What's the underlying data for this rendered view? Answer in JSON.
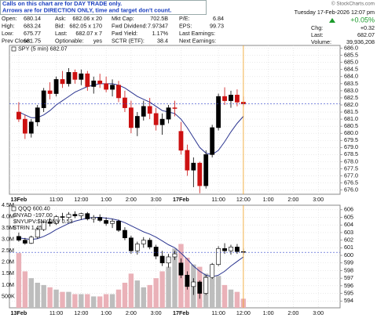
{
  "header": {
    "notes": [
      "Calls on this chart are for DAY TRADE only.",
      "Arrows are for DIRECTION ONLY, time and target don't count."
    ],
    "quote": [
      [
        [
          "Open:",
          "680.14"
        ],
        [
          "Ask:",
          "682.06 x 20"
        ],
        [
          "Mkt Cap:",
          "702.5B"
        ],
        [
          "P/E:",
          "6.84"
        ]
      ],
      [
        [
          "High:",
          "683.24"
        ],
        [
          "Bid:",
          "682.05 x 170"
        ],
        [
          "Fwd Dividend:",
          "7.97347"
        ],
        [
          "EPS:",
          "99.73"
        ]
      ],
      [
        [
          "Low:",
          "675.77"
        ],
        [
          "Last:",
          "682.07 x 7"
        ],
        [
          "Fwd Yield:",
          "1.17%"
        ],
        [
          "Last Earnings:"
        ]
      ],
      [
        [
          "Prev Close:",
          "681.75"
        ],
        [
          "Optionable:",
          "yes"
        ],
        [
          "SCTR (ETF):",
          "38.4"
        ],
        [
          "Next Earnings:"
        ]
      ]
    ],
    "copyright": "© StockCharts.com",
    "date": "Tuesday 17-Feb-2026 12:07 pm",
    "change_pct": "+0.05%",
    "summary": [
      [
        "Chg:",
        "+0.32"
      ],
      [
        "Last:",
        "682.07"
      ],
      [
        "Volume:",
        "39,936,208"
      ]
    ]
  },
  "chart_data": [
    {
      "type": "candlestick",
      "xlim": [
        -1.5,
        51.5
      ],
      "xticks": [
        {
          "value": 0,
          "label": "13Feb"
        },
        {
          "value": 6,
          "label": "11:00"
        },
        {
          "value": 10,
          "label": "12:00"
        },
        {
          "value": 14,
          "label": "1:00"
        },
        {
          "value": 18,
          "label": "2:00"
        },
        {
          "value": 22,
          "label": "3:00"
        },
        {
          "value": 26,
          "label": "17Feb"
        },
        {
          "value": 32,
          "label": "11:00"
        },
        {
          "value": 36,
          "label": "12:00"
        },
        {
          "value": 40,
          "label": "1:00"
        },
        {
          "value": 44,
          "label": "2:00"
        },
        {
          "value": 48,
          "label": "3:00"
        }
      ],
      "ylim": [
        675.7,
        686.2
      ],
      "yticks": [
        {
          "value": 676,
          "label": "676.0"
        },
        {
          "value": 676.5,
          "label": "676.5"
        },
        {
          "value": 677,
          "label": "677.0"
        },
        {
          "value": 677.5,
          "label": "677.5"
        },
        {
          "value": 678,
          "label": "678.0"
        },
        {
          "value": 678.5,
          "label": "678.5"
        },
        {
          "value": 679,
          "label": "679.0"
        },
        {
          "value": 679.5,
          "label": "679.5"
        },
        {
          "value": 680,
          "label": "680.0"
        },
        {
          "value": 680.5,
          "label": "680.5"
        },
        {
          "value": 681,
          "label": "681.0"
        },
        {
          "value": 681.5,
          "label": "681.5"
        },
        {
          "value": 682,
          "label": "682.0"
        },
        {
          "value": 682.5,
          "label": "682.5"
        },
        {
          "value": 683,
          "label": "683.0"
        },
        {
          "value": 683.5,
          "label": "683.5"
        },
        {
          "value": 684,
          "label": "684.0"
        },
        {
          "value": 684.5,
          "label": "684.5"
        },
        {
          "value": 685,
          "label": "685.0"
        },
        {
          "value": 685.5,
          "label": "685.5"
        },
        {
          "value": 686,
          "label": "686.0"
        }
      ],
      "grid": true,
      "series": [
        {
          "name": "SPY (5 min) 682.07",
          "up_color": "#000000",
          "down_color": "#cc1111",
          "open": [
            681.5,
            681.0,
            680.0,
            680.8,
            681.8,
            683.0,
            682.8,
            683.8,
            683.5,
            684.3,
            683.8,
            684.2,
            683.3,
            683.7,
            683.5,
            683.1,
            683.4,
            682.5,
            681.8,
            680.4,
            681.2,
            681.9,
            681.4,
            680.6,
            681.0,
            681.8,
            680.14,
            678.8,
            677.4,
            677.9,
            676.3,
            678.5,
            680.4,
            682.6,
            682.3,
            682.7,
            682.2
          ],
          "high": [
            682.2,
            681.3,
            681.0,
            682.0,
            683.2,
            683.6,
            684.0,
            684.4,
            684.6,
            684.5,
            684.5,
            684.4,
            684.0,
            684.2,
            684.0,
            683.8,
            683.7,
            683.0,
            682.3,
            681.5,
            682.3,
            682.5,
            681.8,
            681.4,
            682.0,
            682.3,
            680.8,
            679.2,
            678.3,
            678.0,
            678.8,
            680.6,
            682.8,
            683.24,
            683.0,
            683.1,
            682.6
          ],
          "low": [
            680.8,
            679.6,
            679.7,
            680.5,
            681.5,
            682.4,
            682.6,
            683.2,
            683.3,
            683.5,
            683.4,
            683.0,
            682.8,
            683.2,
            682.9,
            682.6,
            682.2,
            681.5,
            680.0,
            679.8,
            680.9,
            681.0,
            680.2,
            679.9,
            680.7,
            681.2,
            678.5,
            677.0,
            676.2,
            675.77,
            676.1,
            678.3,
            680.2,
            682.0,
            681.8,
            681.9,
            681.9
          ],
          "close": [
            681.0,
            680.0,
            680.8,
            681.8,
            683.0,
            682.8,
            683.8,
            683.5,
            684.3,
            683.8,
            684.2,
            683.3,
            683.7,
            683.5,
            683.1,
            683.4,
            682.5,
            681.8,
            680.4,
            681.2,
            681.9,
            681.4,
            680.6,
            681.0,
            681.8,
            681.75,
            678.8,
            677.4,
            677.9,
            676.3,
            678.5,
            680.4,
            682.6,
            682.3,
            682.7,
            682.2,
            682.07
          ]
        },
        {
          "color": "#2b3590",
          "values": [
            681.5,
            681.3,
            681.1,
            681.1,
            681.3,
            681.6,
            682.0,
            682.3,
            682.6,
            682.9,
            683.1,
            683.3,
            683.4,
            683.5,
            683.5,
            683.5,
            683.4,
            683.2,
            682.9,
            682.6,
            682.4,
            682.2,
            681.9,
            681.6,
            681.5,
            681.4,
            681.0,
            680.4,
            679.7,
            679.0,
            678.6,
            678.5,
            678.8,
            679.4,
            680.1,
            680.7,
            681.2
          ]
        }
      ]
    },
    {
      "type": "candlestick",
      "xlim": [
        -1.5,
        51.5
      ],
      "xticks": [
        {
          "value": 0,
          "label": "13Feb"
        },
        {
          "value": 6,
          "label": "11:00"
        },
        {
          "value": 10,
          "label": "12:00"
        },
        {
          "value": 14,
          "label": "1:00"
        },
        {
          "value": 18,
          "label": "2:00"
        },
        {
          "value": 22,
          "label": "3:00"
        },
        {
          "value": 26,
          "label": "17Feb"
        },
        {
          "value": 32,
          "label": "11:00"
        },
        {
          "value": 36,
          "label": "12:00"
        },
        {
          "value": 40,
          "label": "1:00"
        },
        {
          "value": 44,
          "label": "2:00"
        },
        {
          "value": 48,
          "label": "3:00"
        }
      ],
      "ylim": [
        593.1,
        606.6
      ],
      "yticks": [
        594,
        595,
        596,
        597,
        598,
        599,
        600,
        601,
        602,
        603,
        604,
        605,
        606
      ],
      "y2lim": [
        0,
        4500000
      ],
      "y2ticks": [
        {
          "value": 500000,
          "label": "500K"
        },
        {
          "value": 1000000,
          "label": "1.0M"
        },
        {
          "value": 1500000,
          "label": "1.5M"
        },
        {
          "value": 2000000,
          "label": "2.0M"
        },
        {
          "value": 2500000,
          "label": "2.5M"
        },
        {
          "value": 3000000,
          "label": "3.0M"
        },
        {
          "value": 3500000,
          "label": "3.5M"
        },
        {
          "value": 4000000,
          "label": "4.0M"
        },
        {
          "value": 4500000,
          "label": "4.5M"
        }
      ],
      "grid": true,
      "overlays": [
        "$NYAD -197.00",
        "$NYUPV:$NYDNV 0.53",
        "$TRIN 1.45"
      ],
      "series": [
        {
          "name": "QQQ 600.40",
          "up_color": "#ffffff",
          "down_color": "#000000",
          "open": [
            602.5,
            602.0,
            601.6,
            602.4,
            603.4,
            604.4,
            604.2,
            605.1,
            605.0,
            605.4,
            605.2,
            605.5,
            604.8,
            605.0,
            604.6,
            604.2,
            604.5,
            603.3,
            602.3,
            600.6,
            601.5,
            602.0,
            601.1,
            599.9,
            599.0,
            599.8,
            599.0,
            597.4,
            595.9,
            596.5,
            595.0,
            597.1,
            598.8,
            600.9,
            600.6,
            601.1,
            600.5
          ],
          "high": [
            603.0,
            602.3,
            602.6,
            603.6,
            604.6,
            604.9,
            605.3,
            605.6,
            605.7,
            605.8,
            605.6,
            605.7,
            605.3,
            605.4,
            605.0,
            604.8,
            604.7,
            603.7,
            602.6,
            601.8,
            602.4,
            602.3,
            601.4,
            600.6,
            600.2,
            600.6,
            599.6,
            597.9,
            597.0,
            596.7,
            597.4,
            599.0,
            601.2,
            601.6,
            601.4,
            601.5,
            600.9
          ],
          "low": [
            601.8,
            601.4,
            601.5,
            602.2,
            603.2,
            603.8,
            604.0,
            604.6,
            604.8,
            604.9,
            604.7,
            604.6,
            604.3,
            604.4,
            603.9,
            603.6,
            603.1,
            602.0,
            600.2,
            600.1,
            601.0,
            600.8,
            599.5,
            598.6,
            598.4,
            599.4,
            597.0,
            595.5,
            594.8,
            594.3,
            594.8,
            596.9,
            598.6,
            600.2,
            600.1,
            600.2,
            600.1
          ],
          "close": [
            602.0,
            601.6,
            602.4,
            603.4,
            604.4,
            604.2,
            605.1,
            605.0,
            605.4,
            605.2,
            605.5,
            604.8,
            605.0,
            604.6,
            604.2,
            604.5,
            603.3,
            602.3,
            600.6,
            601.5,
            602.0,
            601.1,
            599.9,
            599.0,
            599.8,
            600.2,
            597.4,
            595.9,
            596.5,
            595.0,
            597.1,
            598.8,
            600.9,
            600.6,
            601.1,
            600.5,
            600.4
          ]
        },
        {
          "color": "#2b3590",
          "values": [
            602.3,
            602.2,
            602.1,
            602.2,
            602.5,
            602.9,
            603.4,
            603.8,
            604.2,
            604.5,
            604.7,
            604.9,
            605.0,
            605.0,
            604.9,
            604.8,
            604.6,
            604.3,
            603.9,
            603.5,
            603.1,
            602.8,
            602.4,
            601.9,
            601.4,
            601.0,
            600.3,
            599.5,
            598.6,
            597.9,
            597.4,
            597.2,
            597.4,
            597.9,
            598.6,
            599.2,
            599.8
          ]
        },
        {
          "axis": "y2",
          "up_color": "#bdbdbd",
          "down_color": "#eab1b8",
          "values": [
            2400000,
            1600000,
            1300000,
            1100000,
            1000000,
            900000,
            800000,
            700000,
            700000,
            600000,
            600000,
            600000,
            500000,
            500000,
            600000,
            600000,
            800000,
            1100000,
            1500000,
            1200000,
            900000,
            1000000,
            1300000,
            1600000,
            1800000,
            2600000,
            2800000,
            2200000,
            1900000,
            1800000,
            1500000,
            1300000,
            1400000,
            1000000,
            800000,
            700000,
            400000
          ]
        }
      ]
    }
  ]
}
